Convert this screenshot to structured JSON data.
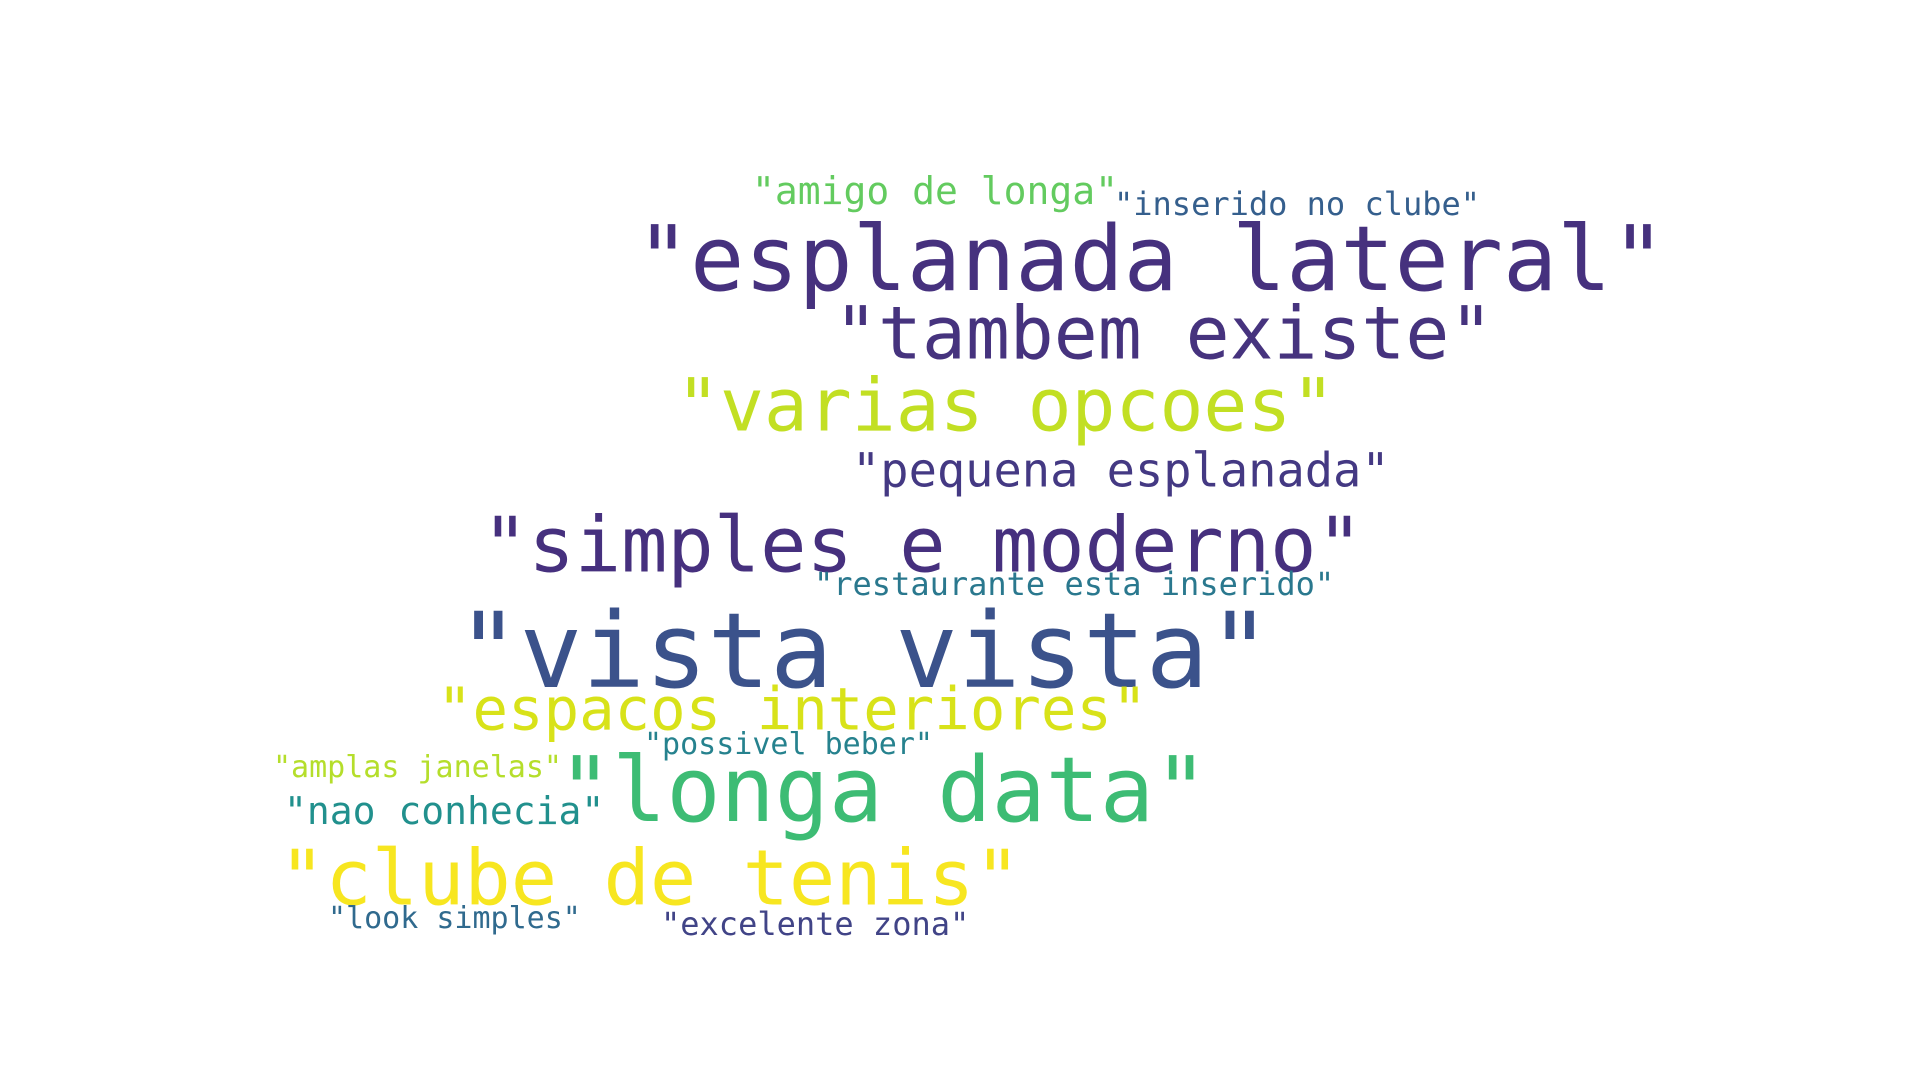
{
  "word_cloud": {
    "words": [
      {
        "text": "\"esplanada lateral\"",
        "color": "#46317e"
      },
      {
        "text": "\"tambem existe\"",
        "color": "#46337e"
      },
      {
        "text": "\"varias opcoes\"",
        "color": "#c2df23"
      },
      {
        "text": "\"pequena esplanada\"",
        "color": "#443983"
      },
      {
        "text": "\"simples e moderno\"",
        "color": "#46307e"
      },
      {
        "text": "\"vista vista\"",
        "color": "#3b528b"
      },
      {
        "text": "\"espacos interiores\"",
        "color": "#d8e219"
      },
      {
        "text": "\"longa data\"",
        "color": "#3dbc74"
      },
      {
        "text": "\"clube de tenis\"",
        "color": "#f7e620"
      },
      {
        "text": "\"amigo de longa\"",
        "color": "#63cb5f"
      },
      {
        "text": "\"inserido no clube\"",
        "color": "#355f8d"
      },
      {
        "text": "\"restaurante esta inserido\"",
        "color": "#2a788e"
      },
      {
        "text": "\"possivel beber\"",
        "color": "#26828e"
      },
      {
        "text": "\"amplas janelas\"",
        "color": "#b5de2b"
      },
      {
        "text": "\"nao conhecia\"",
        "color": "#21908d"
      },
      {
        "text": "\"look simples\"",
        "color": "#306a8e"
      },
      {
        "text": "\"excelente zona\"",
        "color": "#414487"
      }
    ]
  }
}
